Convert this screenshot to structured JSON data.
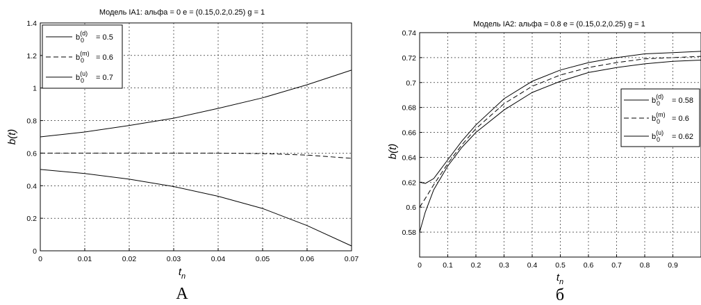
{
  "chart_data": [
    {
      "type": "line",
      "caption": "A",
      "title": "Модель IA1:  альфа = 0   e = (0.15,0.2,0.25)  g = 1",
      "xlabel": "t",
      "xlabel_sub": "n",
      "ylabel": "b(t)",
      "xlim": [
        0,
        0.07
      ],
      "ylim": [
        0,
        1.4
      ],
      "xticks": [
        0,
        0.01,
        0.02,
        0.03,
        0.04,
        0.05,
        0.06,
        0.07
      ],
      "xtick_labels": [
        "0",
        "0.01",
        "0.02",
        "0.03",
        "0.04",
        "0.05",
        "0.06",
        "0.07"
      ],
      "yticks": [
        0,
        0.2,
        0.4,
        0.6,
        0.8,
        1,
        1.2,
        1.4
      ],
      "ytick_labels": [
        "0",
        "0.2",
        "0.4",
        "0.6",
        "0.8",
        "1",
        "1.2",
        "1.4"
      ],
      "grid": true,
      "legend_position": "top-left",
      "series": [
        {
          "name": "b0(d) = 0.5",
          "label_base": "b",
          "label_sub": "0",
          "label_sup": "(d)",
          "label_value": " = 0.5",
          "style": "solid",
          "x": [
            0,
            0.01,
            0.02,
            0.03,
            0.04,
            0.05,
            0.06,
            0.07
          ],
          "y": [
            0.5,
            0.475,
            0.44,
            0.395,
            0.335,
            0.26,
            0.155,
            0.03
          ]
        },
        {
          "name": "b0(m) = 0.6",
          "label_base": "b",
          "label_sub": "0",
          "label_sup": "(m)",
          "label_value": " = 0.6",
          "style": "dashed",
          "x": [
            0,
            0.01,
            0.02,
            0.03,
            0.04,
            0.05,
            0.06,
            0.07
          ],
          "y": [
            0.6,
            0.6,
            0.6,
            0.6,
            0.6,
            0.597,
            0.588,
            0.568
          ]
        },
        {
          "name": "b0(u) = 0.7",
          "label_base": "b",
          "label_sub": "0",
          "label_sup": "(u)",
          "label_value": " = 0.7",
          "style": "solid",
          "x": [
            0,
            0.01,
            0.02,
            0.03,
            0.04,
            0.05,
            0.06,
            0.07
          ],
          "y": [
            0.7,
            0.73,
            0.77,
            0.815,
            0.875,
            0.94,
            1.02,
            1.11
          ]
        }
      ]
    },
    {
      "type": "line",
      "caption": "б",
      "title": "Модель IA2:  альфа = 0.8   e = (0.15,0.2,0.25)  g = 1",
      "xlabel": "t",
      "xlabel_sub": "n",
      "ylabel": "b(t)",
      "xlim": [
        0,
        1
      ],
      "ylim": [
        0.56,
        0.74
      ],
      "xticks": [
        0,
        0.1,
        0.2,
        0.3,
        0.4,
        0.5,
        0.6,
        0.7,
        0.8,
        0.9
      ],
      "xtick_labels": [
        "0",
        "0.1",
        "0.2",
        "0.3",
        "0.4",
        "0.5",
        "0.6",
        "0.7",
        "0.8",
        "0.9"
      ],
      "yticks": [
        0.58,
        0.6,
        0.62,
        0.64,
        0.66,
        0.68,
        0.7,
        0.72,
        0.74
      ],
      "ytick_labels": [
        "0.58",
        "0.6",
        "0.62",
        "0.64",
        "0.66",
        "0.68",
        "0.7",
        "0.72",
        "0.74"
      ],
      "grid": true,
      "legend_position": "right",
      "series": [
        {
          "name": "b0(d) = 0.58",
          "label_base": "b",
          "label_sub": "0",
          "label_sup": "(d)",
          "label_value": " = 0.58",
          "style": "solid",
          "x": [
            0,
            0.02,
            0.05,
            0.1,
            0.15,
            0.2,
            0.3,
            0.4,
            0.5,
            0.6,
            0.7,
            0.8,
            0.9,
            1.0
          ],
          "y": [
            0.58,
            0.596,
            0.614,
            0.633,
            0.648,
            0.66,
            0.678,
            0.692,
            0.701,
            0.708,
            0.712,
            0.715,
            0.717,
            0.718
          ]
        },
        {
          "name": "b0(m) = 0.6",
          "label_base": "b",
          "label_sub": "0",
          "label_sup": "(m)",
          "label_value": " = 0.6",
          "style": "dashed",
          "x": [
            0,
            0.02,
            0.05,
            0.1,
            0.15,
            0.2,
            0.3,
            0.4,
            0.5,
            0.6,
            0.7,
            0.8,
            0.9,
            1.0
          ],
          "y": [
            0.6,
            0.607,
            0.618,
            0.635,
            0.65,
            0.663,
            0.683,
            0.697,
            0.706,
            0.712,
            0.716,
            0.719,
            0.72,
            0.721
          ]
        },
        {
          "name": "b0(u) = 0.62",
          "label_base": "b",
          "label_sub": "0",
          "label_sup": "(u)",
          "label_value": " = 0.62",
          "style": "solid",
          "x": [
            0,
            0.02,
            0.05,
            0.1,
            0.15,
            0.2,
            0.3,
            0.4,
            0.5,
            0.6,
            0.7,
            0.8,
            0.9,
            1.0
          ],
          "y": [
            0.62,
            0.619,
            0.623,
            0.638,
            0.653,
            0.666,
            0.687,
            0.701,
            0.71,
            0.716,
            0.72,
            0.723,
            0.724,
            0.725
          ]
        }
      ]
    }
  ]
}
